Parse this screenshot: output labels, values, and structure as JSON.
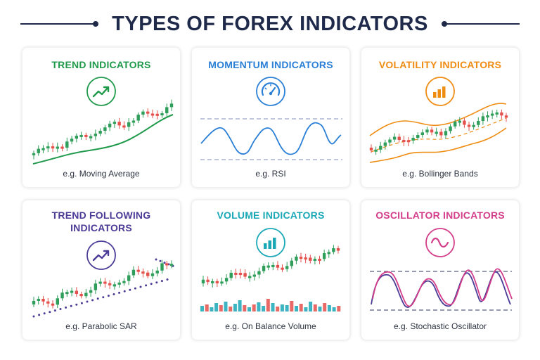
{
  "page": {
    "title": "TYPES OF FOREX INDICATORS"
  },
  "cards": [
    {
      "title": "TREND INDICATORS",
      "caption": "e.g. Moving Average",
      "color": "#1f9a4b",
      "icon": "trend-up-icon"
    },
    {
      "title": "MOMENTUM INDICATORS",
      "caption": "e.g. RSI",
      "color": "#2a7fd6",
      "icon": "gauge-icon"
    },
    {
      "title": "VOLATILITY INDICATORS",
      "caption": "e.g. Bollinger Bands",
      "color": "#ef8c12",
      "icon": "bar-chart-icon"
    },
    {
      "title_line1": "TREND FOLLOWING",
      "title_line2": "INDICATORS",
      "caption": "e.g. Parabolic SAR",
      "color": "#4b3a96",
      "icon": "trend-up-icon"
    },
    {
      "title": "VOLUME INDICATORS",
      "caption": "e.g. On Balance Volume",
      "color": "#1aa7b6",
      "icon": "bar-chart-icon"
    },
    {
      "title": "OSCILLATOR INDICATORS",
      "caption": "e.g. Stochastic Oscillator",
      "color": "#d33d8a",
      "icon": "sine-wave-icon"
    }
  ],
  "colors": {
    "bullish": "#2f9e5a",
    "bearish": "#e4504c",
    "navy": "#1f2a4a",
    "guide": "#9aa3c7",
    "sar": "#4b3a96"
  }
}
